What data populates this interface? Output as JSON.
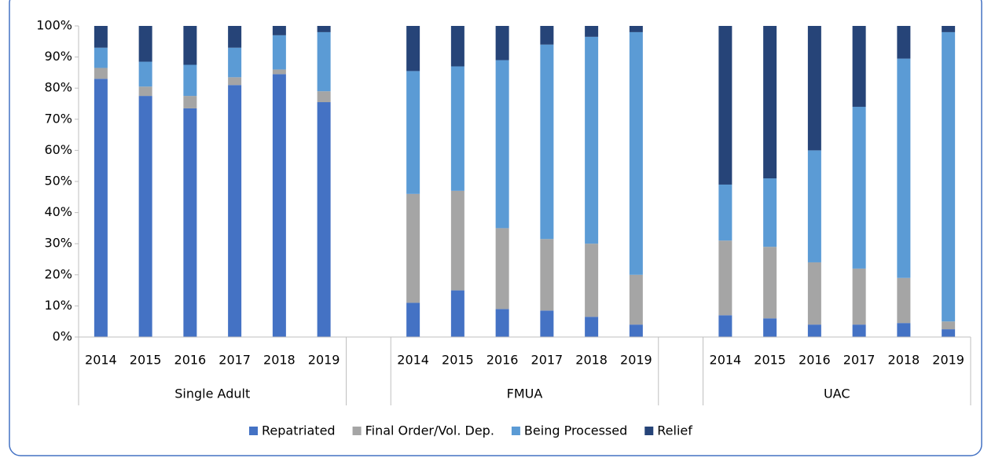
{
  "chart_data": {
    "type": "stacked_bar",
    "categories": [
      "2014",
      "2015",
      "2016",
      "2017",
      "2018",
      "2019",
      null,
      "2014",
      "2015",
      "2016",
      "2017",
      "2018",
      "2019",
      null,
      "2014",
      "2015",
      "2016",
      "2017",
      "2018",
      "2019"
    ],
    "groups": [
      "Single Adult",
      "FMUA",
      "UAC"
    ],
    "series": [
      {
        "name": "Repatriated",
        "color": "#4472c4",
        "values": [
          83,
          77.5,
          73.5,
          81,
          84.5,
          75.5,
          null,
          11,
          15,
          9,
          8.5,
          6.5,
          4,
          null,
          7,
          6,
          4,
          4,
          4.5,
          2.5
        ]
      },
      {
        "name": "Final Order/Vol. Dep.",
        "color": "#a5a5a5",
        "values": [
          3.5,
          3,
          4,
          2.5,
          1.5,
          3.5,
          null,
          35,
          32,
          26,
          23,
          23.5,
          16,
          null,
          24,
          23,
          20,
          18,
          14.5,
          2.5
        ]
      },
      {
        "name": "Being Processed",
        "color": "#5b9bd5",
        "values": [
          6.5,
          8,
          10,
          9.5,
          11,
          19,
          null,
          39.5,
          40,
          54,
          62.5,
          66.5,
          78,
          null,
          18,
          22,
          36,
          52,
          70.5,
          93
        ]
      },
      {
        "name": "Relief",
        "color": "#264478",
        "values": [
          7,
          11.5,
          12.5,
          7,
          3,
          2,
          null,
          14.5,
          13,
          11,
          6,
          3.5,
          2,
          null,
          51,
          49,
          40,
          26,
          10.5,
          2
        ]
      }
    ],
    "ylim": [
      0,
      100
    ],
    "yticks": [
      {
        "value": 0,
        "label": "0%"
      },
      {
        "value": 10,
        "label": "10%"
      },
      {
        "value": 20,
        "label": "20%"
      },
      {
        "value": 30,
        "label": "30%"
      },
      {
        "value": 40,
        "label": "40%"
      },
      {
        "value": 50,
        "label": "50%"
      },
      {
        "value": 60,
        "label": "60%"
      },
      {
        "value": 70,
        "label": "70%"
      },
      {
        "value": 80,
        "label": "80%"
      },
      {
        "value": 90,
        "label": "90%"
      },
      {
        "value": 100,
        "label": "100%"
      }
    ],
    "legend": "bottom"
  }
}
